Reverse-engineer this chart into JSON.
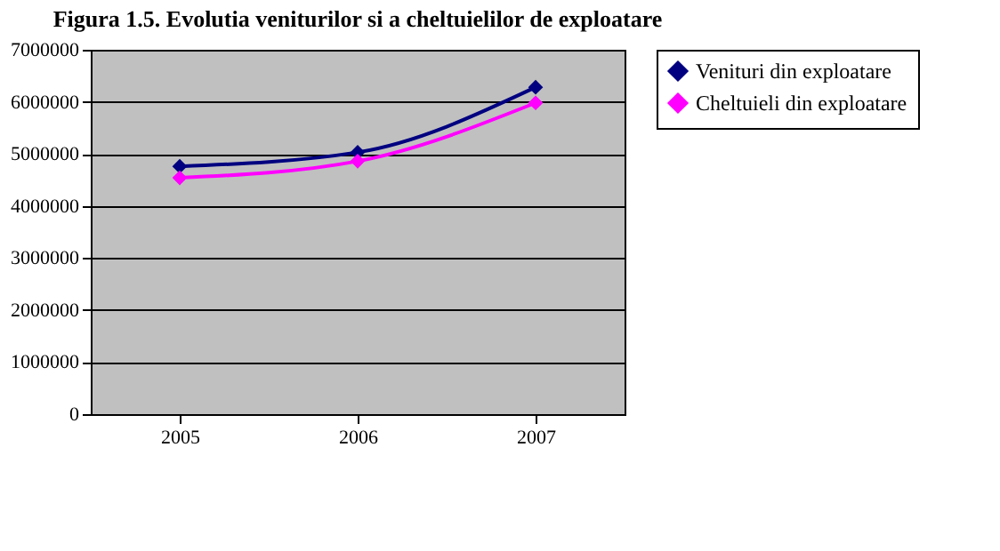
{
  "chart_data": {
    "type": "line",
    "title": "Figura 1.5. Evolutia veniturilor si a cheltuielilor de exploatare",
    "categories": [
      "2005",
      "2006",
      "2007"
    ],
    "series": [
      {
        "name": "Venituri din exploatare",
        "color": "#000080",
        "values": [
          4760000,
          5030000,
          6280000
        ]
      },
      {
        "name": "Cheltuieli din exploatare",
        "color": "#ff00ff",
        "values": [
          4540000,
          4860000,
          5980000
        ]
      }
    ],
    "ylim": [
      0,
      7000000
    ],
    "yticks": [
      0,
      1000000,
      2000000,
      3000000,
      4000000,
      5000000,
      6000000,
      7000000
    ],
    "grid": "y",
    "legend": "right",
    "marker": "diamond",
    "line_style": "solid"
  }
}
